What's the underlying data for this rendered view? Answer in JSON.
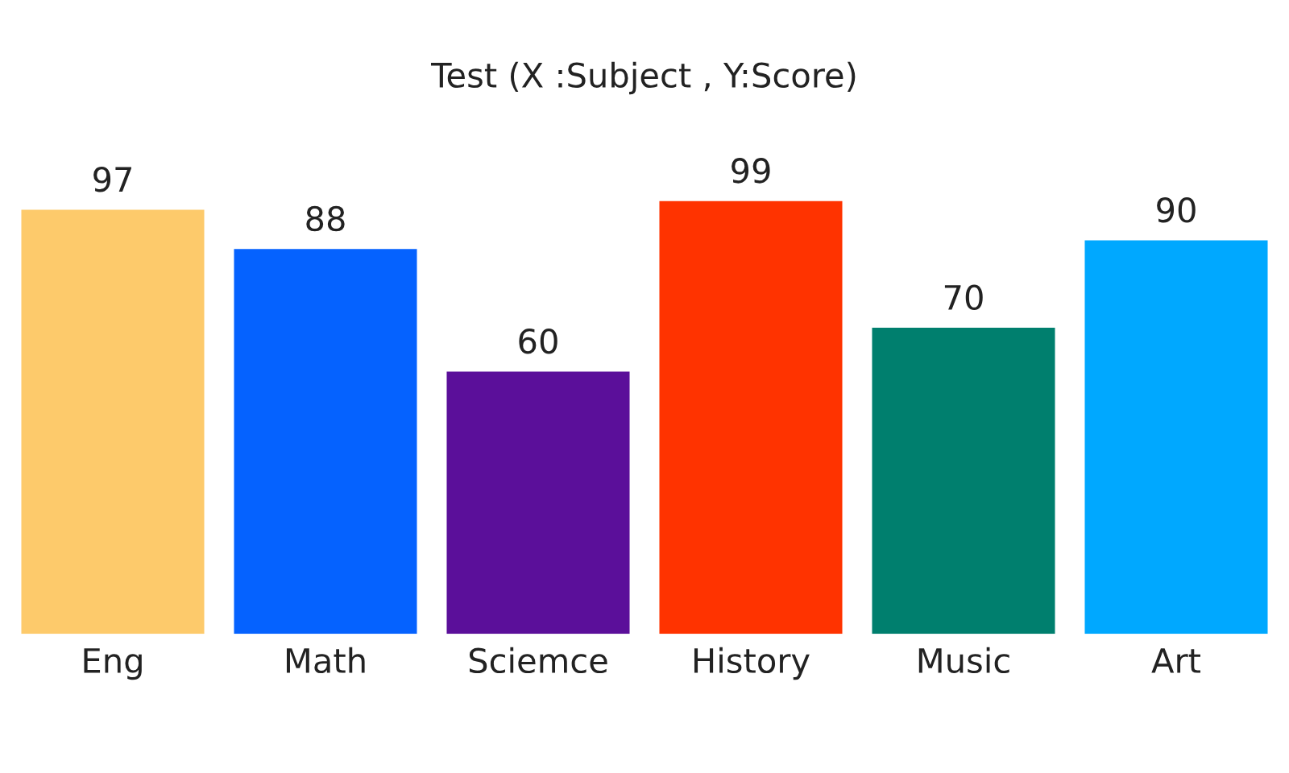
{
  "chart_data": {
    "type": "bar",
    "title": "Test (X :Subject , Y:Score)",
    "categories": [
      "Eng",
      "Math",
      "Sciemce",
      "History",
      "Music",
      "Art"
    ],
    "values": [
      97,
      88,
      60,
      99,
      70,
      90
    ],
    "colors": [
      "#fdca6b",
      "#0562ff",
      "#5b0f9a",
      "#ff3300",
      "#007f6e",
      "#00a8ff"
    ],
    "data_labels": true,
    "grid": false,
    "legend": false,
    "tick_labels": "x"
  }
}
